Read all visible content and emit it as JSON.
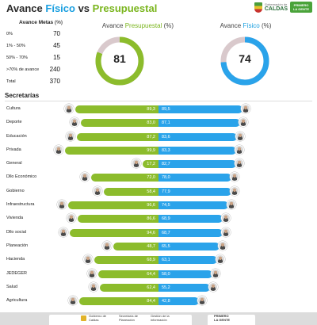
{
  "header": {
    "title_part1": "Avance ",
    "title_fisico": "Físico",
    "title_vs": " vs ",
    "title_presupuestal": "Presupuestal",
    "logo_small": "Gobernación de",
    "logo_big": "CALDAS",
    "logo_badge": "PRIMERO LA GENTE"
  },
  "metas": {
    "header_label": "Avance Metas",
    "header_pct": " (%)",
    "rows": [
      {
        "label": "0%",
        "value": "70"
      },
      {
        "label": "1% - 50%",
        "value": "45"
      },
      {
        "label": "50% - 70%",
        "value": "15"
      },
      {
        "label": ">70% de avance",
        "value": "240"
      },
      {
        "label": "Total",
        "value": "370"
      }
    ]
  },
  "gauges": {
    "presupuestal": {
      "title_a": "Avance ",
      "title_b": "Presupuestal",
      "title_c": " (%)",
      "value": 81,
      "color": "#8cbc2c"
    },
    "fisico": {
      "title_a": "Avance ",
      "title_b": "Físico",
      "title_c": " (%)",
      "value": 74,
      "color": "#2aa3ea"
    },
    "track_color": "#d9c9cc"
  },
  "secretarias": {
    "title": "Secretarías",
    "rows": [
      {
        "name": "Cultura",
        "presupuestal": 89.3,
        "fisico": 89.5,
        "presupuestal_label": "89,3",
        "fisico_label": "89,5"
      },
      {
        "name": "Deporte",
        "presupuestal": 83.0,
        "fisico": 87.1,
        "presupuestal_label": "83,0",
        "fisico_label": "87,1"
      },
      {
        "name": "Educación",
        "presupuestal": 87.2,
        "fisico": 83.6,
        "presupuestal_label": "87,2",
        "fisico_label": "83,6"
      },
      {
        "name": "Privada",
        "presupuestal": 99.9,
        "fisico": 83.3,
        "presupuestal_label": "99,9",
        "fisico_label": "83,3"
      },
      {
        "name": "General",
        "presupuestal": 17.2,
        "fisico": 82.7,
        "presupuestal_label": "17,2",
        "fisico_label": "82,7"
      },
      {
        "name": "Dllo Económico",
        "presupuestal": 72.0,
        "fisico": 78.0,
        "presupuestal_label": "72,0",
        "fisico_label": "78,0"
      },
      {
        "name": "Gobierno",
        "presupuestal": 58.4,
        "fisico": 77.9,
        "presupuestal_label": "58,4",
        "fisico_label": "77,9"
      },
      {
        "name": "Infraestructura",
        "presupuestal": 96.6,
        "fisico": 74.5,
        "presupuestal_label": "96,6",
        "fisico_label": "74,5"
      },
      {
        "name": "Vivienda",
        "presupuestal": 86.6,
        "fisico": 68.9,
        "presupuestal_label": "86,6",
        "fisico_label": "68,9"
      },
      {
        "name": "Dllo social",
        "presupuestal": 94.6,
        "fisico": 68.7,
        "presupuestal_label": "94,6",
        "fisico_label": "68,7"
      },
      {
        "name": "Planeación",
        "presupuestal": 48.7,
        "fisico": 65.5,
        "presupuestal_label": "48,7",
        "fisico_label": "65,5"
      },
      {
        "name": "Hacienda",
        "presupuestal": 68.9,
        "fisico": 63.1,
        "presupuestal_label": "68,9",
        "fisico_label": "63,1"
      },
      {
        "name": "JEDEGER",
        "presupuestal": 64.4,
        "fisico": 58.0,
        "presupuestal_label": "64,4",
        "fisico_label": "58,0"
      },
      {
        "name": "Salud",
        "presupuestal": 62.4,
        "fisico": 55.2,
        "presupuestal_label": "62,4",
        "fisico_label": "55,2"
      },
      {
        "name": "Agricultura",
        "presupuestal": 84.4,
        "fisico": 42.8,
        "presupuestal_label": "84,4",
        "fisico_label": "42,8"
      }
    ]
  },
  "footer": {
    "items": [
      {
        "line1": "Gobierno de",
        "line2": "Caldas"
      },
      {
        "line1": "Secretaría de",
        "line2": "Planeación"
      },
      {
        "line1": "Gestión de la",
        "line2": "información"
      },
      {
        "line1": "PRIMERO",
        "line2": "LA GENTE"
      }
    ]
  }
}
